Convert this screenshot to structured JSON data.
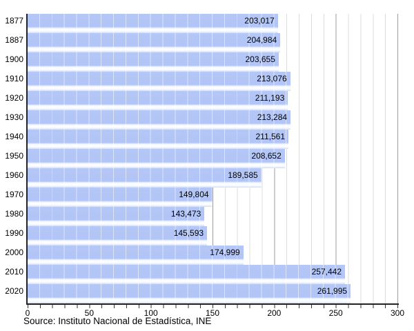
{
  "chart_data": {
    "type": "bar",
    "orientation": "horizontal",
    "title": "",
    "categories": [
      "1877",
      "1887",
      "1900",
      "1910",
      "1920",
      "1930",
      "1940",
      "1950",
      "1960",
      "1970",
      "1980",
      "1990",
      "2000",
      "2010",
      "2020"
    ],
    "values": [
      203017,
      204984,
      203655,
      213076,
      211193,
      213284,
      211561,
      208652,
      189585,
      149804,
      143473,
      145593,
      174999,
      257442,
      261995
    ],
    "value_labels": [
      "203,017",
      "204,984",
      "203,655",
      "213,076",
      "211,193",
      "213,284",
      "211,561",
      "208,652",
      "189,585",
      "149,804",
      "143,473",
      "145,593",
      "174,999",
      "257,442",
      "261,995"
    ],
    "xlabel": "",
    "ylabel": "",
    "xlim": [
      0,
      300
    ],
    "x_ticks": [
      0,
      50,
      100,
      150,
      200,
      250,
      300
    ],
    "x_minor_tick_step": 10,
    "x_axis_scale": "thousands",
    "grid": "vertical minor every 10, major every 50",
    "legend": "none",
    "source": "Source: Instituto Nacional de Estadística, INE"
  },
  "colors": {
    "bar_fill": "#b2c5f6",
    "bar_gloss": "#ffffff",
    "grid_minor": "#dcdcdc",
    "grid_major": "#9c9c9c",
    "axis": "#222222",
    "text": "#000000",
    "background": "#ffffff"
  }
}
